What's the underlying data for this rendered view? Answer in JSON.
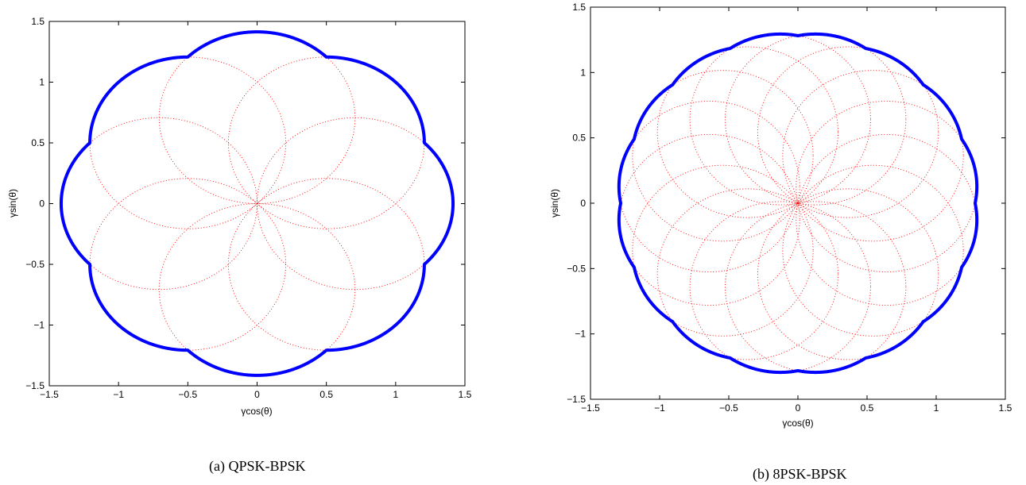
{
  "chart_data": [
    {
      "type": "line",
      "caption": "(a) QPSK-BPSK",
      "xlabel": "γcos(θ)",
      "ylabel": "γsin(θ)",
      "xlim": [
        -1.5,
        1.5
      ],
      "ylim": [
        -1.5,
        1.5
      ],
      "xticks": [
        "−1.5",
        "−1",
        "−0.5",
        "0",
        "0.5",
        "1",
        "1.5"
      ],
      "yticks": [
        "1.5",
        "1",
        "0.5",
        "0",
        "−0.5",
        "−1",
        "−1.5"
      ],
      "grid": false,
      "series": [
        {
          "role": "outer-boundary",
          "style": "solid",
          "color": "#0000ff",
          "circle_radius": 0.7071,
          "center_radius": 0.7071,
          "centers_count": 8,
          "centers_offset_deg": 0
        },
        {
          "role": "component-circles",
          "style": "dotted",
          "color": "#ff0000",
          "circle_radius": 0.7071,
          "center_radius": 0.7071,
          "centers_count": 8,
          "centers_offset_deg": 0
        }
      ]
    },
    {
      "type": "line",
      "caption": "(b) 8PSK-BPSK",
      "xlabel": "γcos(θ)",
      "ylabel": "γsin(θ)",
      "xlim": [
        -1.5,
        1.5
      ],
      "ylim": [
        -1.5,
        1.5
      ],
      "xticks": [
        "−1.5",
        "−1",
        "−0.5",
        "0",
        "0.5",
        "1",
        "1.5"
      ],
      "yticks": [
        "1.5",
        "1",
        "0.5",
        "0",
        "−0.5",
        "−1",
        "−1.5"
      ],
      "grid": false,
      "series": [
        {
          "role": "outer-boundary",
          "style": "solid",
          "color": "#0000ff",
          "circle_radius": 0.6533,
          "center_radius": 0.6533,
          "centers_count": 16,
          "centers_offset_deg": 11.25
        },
        {
          "role": "component-circles",
          "style": "dotted",
          "color": "#ff0000",
          "circle_radius": 0.6533,
          "center_radius": 0.6533,
          "centers_count": 16,
          "centers_offset_deg": 11.25
        }
      ]
    }
  ]
}
